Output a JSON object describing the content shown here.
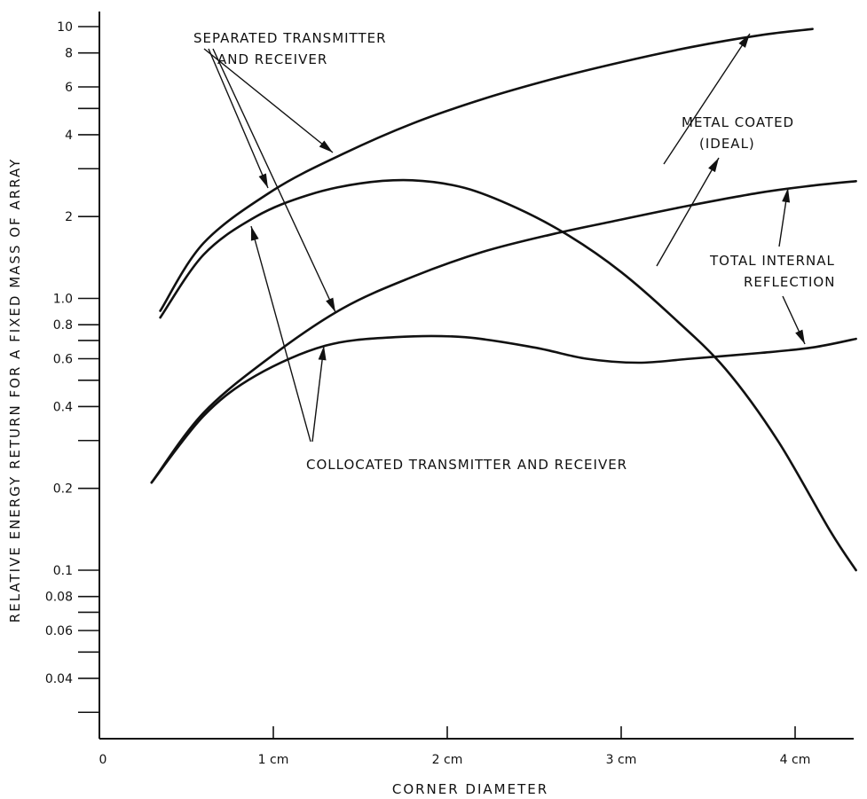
{
  "chart_data": {
    "type": "line",
    "xlabel": "CORNER DIAMETER",
    "ylabel": "RELATIVE ENERGY RETURN FOR A FIXED MASS OF ARRAY",
    "xlim": [
      0,
      4.3
    ],
    "ylim": [
      0.025,
      12
    ],
    "y_scale": "log",
    "grid": false,
    "x_ticks": [
      {
        "value": 0,
        "label": "0"
      },
      {
        "value": 1,
        "label": "1 cm"
      },
      {
        "value": 2,
        "label": "2 cm"
      },
      {
        "value": 3,
        "label": "3 cm"
      },
      {
        "value": 4,
        "label": "4 cm"
      }
    ],
    "y_ticks": [
      {
        "value": 10,
        "label": "10"
      },
      {
        "value": 8,
        "label": "8"
      },
      {
        "value": 6,
        "label": "6"
      },
      {
        "value": 5,
        "label": ""
      },
      {
        "value": 4,
        "label": "4"
      },
      {
        "value": 3,
        "label": ""
      },
      {
        "value": 2,
        "label": "2"
      },
      {
        "value": 1.0,
        "label": "1.0"
      },
      {
        "value": 0.8,
        "label": "0.8"
      },
      {
        "value": 0.7,
        "label": ""
      },
      {
        "value": 0.6,
        "label": "0.6"
      },
      {
        "value": 0.5,
        "label": ""
      },
      {
        "value": 0.4,
        "label": "0.4"
      },
      {
        "value": 0.3,
        "label": ""
      },
      {
        "value": 0.2,
        "label": "0.2"
      },
      {
        "value": 0.1,
        "label": "0.1"
      },
      {
        "value": 0.08,
        "label": "0.08"
      },
      {
        "value": 0.07,
        "label": ""
      },
      {
        "value": 0.06,
        "label": "0.06"
      },
      {
        "value": 0.05,
        "label": ""
      },
      {
        "value": 0.04,
        "label": "0.04"
      },
      {
        "value": 0.03,
        "label": ""
      }
    ],
    "series": [
      {
        "x": [
          0.35,
          0.6,
          1.0,
          1.4,
          1.8,
          2.2,
          2.6,
          3.0,
          3.4,
          3.8,
          4.1
        ],
        "y": [
          0.9,
          1.6,
          2.5,
          3.4,
          4.4,
          5.4,
          6.4,
          7.4,
          8.4,
          9.3,
          9.8
        ]
      },
      {
        "x": [
          0.35,
          0.6,
          0.9,
          1.2,
          1.5,
          1.8,
          2.1,
          2.4,
          2.7,
          3.0,
          3.3,
          3.6,
          3.9,
          4.2,
          4.35
        ],
        "y": [
          0.85,
          1.45,
          2.0,
          2.4,
          2.65,
          2.72,
          2.55,
          2.15,
          1.7,
          1.25,
          0.85,
          0.55,
          0.3,
          0.14,
          0.1
        ]
      },
      {
        "x": [
          0.3,
          0.6,
          1.0,
          1.4,
          1.8,
          2.2,
          2.6,
          3.0,
          3.4,
          3.8,
          4.1,
          4.35
        ],
        "y": [
          0.21,
          0.38,
          0.62,
          0.92,
          1.2,
          1.48,
          1.72,
          1.95,
          2.2,
          2.45,
          2.6,
          2.7
        ]
      },
      {
        "x": [
          0.3,
          0.6,
          0.9,
          1.3,
          1.7,
          2.1,
          2.5,
          2.8,
          3.1,
          3.4,
          3.8,
          4.1,
          4.35
        ],
        "y": [
          0.21,
          0.37,
          0.52,
          0.67,
          0.72,
          0.72,
          0.66,
          0.6,
          0.58,
          0.6,
          0.63,
          0.66,
          0.71
        ]
      }
    ],
    "annotations": [
      {
        "lines": [
          "SEPARATED TRANSMITTER",
          "AND RECEIVER"
        ]
      },
      {
        "lines": [
          "METAL COATED",
          "(IDEAL)"
        ]
      },
      {
        "lines": [
          "TOTAL INTERNAL",
          "REFLECTION"
        ]
      },
      {
        "lines": [
          "COLLOCATED TRANSMITTER AND RECEIVER"
        ]
      }
    ]
  }
}
